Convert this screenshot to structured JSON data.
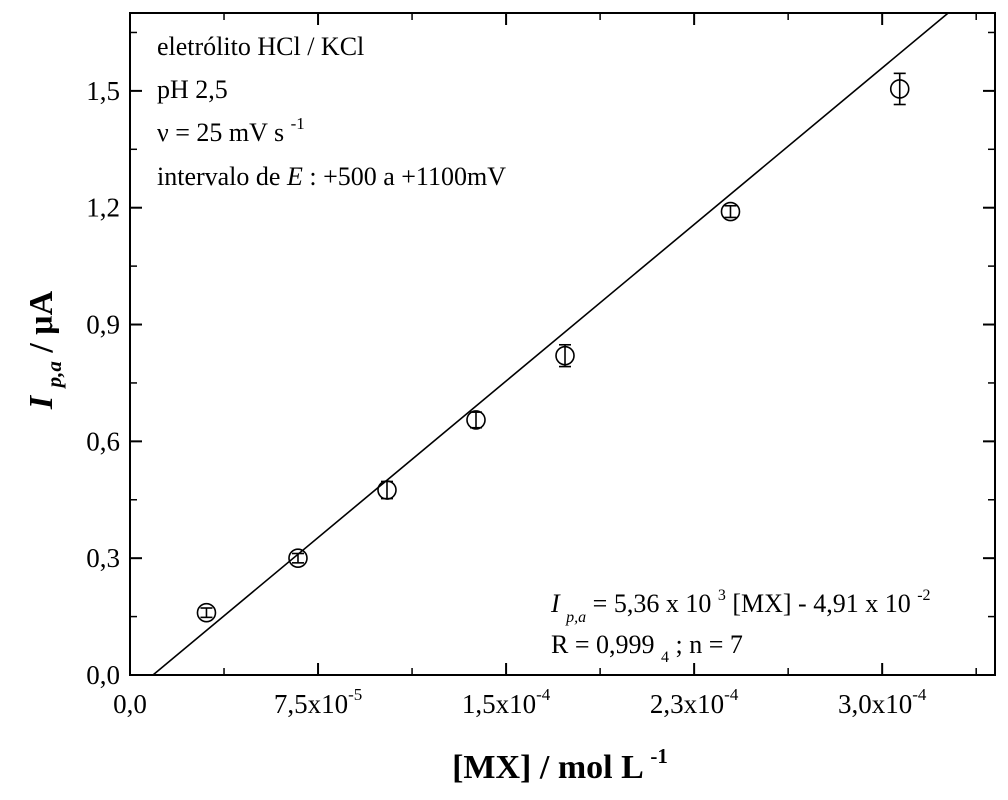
{
  "chart_data": {
    "type": "scatter",
    "xlim": [
      0,
      0.000345
    ],
    "ylim": [
      0,
      1.7
    ],
    "x_ticks": [
      {
        "value": 0,
        "mant": "0,0",
        "exp": ""
      },
      {
        "value": 7.5e-05,
        "mant": "7,5x10",
        "exp": "-5"
      },
      {
        "value": 0.00015,
        "mant": "1,5x10",
        "exp": "-4"
      },
      {
        "value": 0.000225,
        "mant": "2,3x10",
        "exp": "-4"
      },
      {
        "value": 0.0003,
        "mant": "3,0x10",
        "exp": "-4"
      }
    ],
    "y_ticks": [
      {
        "value": 0,
        "label": "0,0"
      },
      {
        "value": 0.3,
        "label": "0,3"
      },
      {
        "value": 0.6,
        "label": "0,6"
      },
      {
        "value": 0.9,
        "label": "0,9"
      },
      {
        "value": 1.2,
        "label": "1,2"
      },
      {
        "value": 1.5,
        "label": "1,5"
      }
    ],
    "points": [
      {
        "x": 3.05e-05,
        "y": 0.16,
        "err": 0.012
      },
      {
        "x": 6.7e-05,
        "y": 0.3,
        "err": 0.012
      },
      {
        "x": 0.0001025,
        "y": 0.475,
        "err": 0.022
      },
      {
        "x": 0.000138,
        "y": 0.655,
        "err": 0.02
      },
      {
        "x": 0.0001735,
        "y": 0.82,
        "err": 0.028
      },
      {
        "x": 0.0002395,
        "y": 1.19,
        "err": 0.015
      },
      {
        "x": 0.000307,
        "y": 1.505,
        "err": 0.04
      }
    ],
    "fit": {
      "slope": 5360,
      "intercept": -0.0491
    },
    "xlabel": {
      "main": "[MX] / mol L",
      "sup": "-1"
    },
    "ylabel": {
      "I": "I",
      "sub": "p,a",
      "rest": " / μA"
    },
    "annotations": {
      "line1": "eletrólito HCl / KCl",
      "line2": "pH 2,5",
      "line3_main": "ν = 25 mV s",
      "line3_sup": "-1",
      "line4_pre": "intervalo de ",
      "line4_E": "E",
      "line4_post": ": +500 a +1100mV",
      "eq_I": "I",
      "eq_sub": "p,a",
      "eq_mid": " = 5,36 x 10",
      "eq_sup1": "3",
      "eq_rest": "[MX] - 4,91 x 10",
      "eq_sup2": "-2",
      "r_pre": "R = 0,999",
      "r_sub": "4",
      "r_post": "; n = 7"
    }
  }
}
